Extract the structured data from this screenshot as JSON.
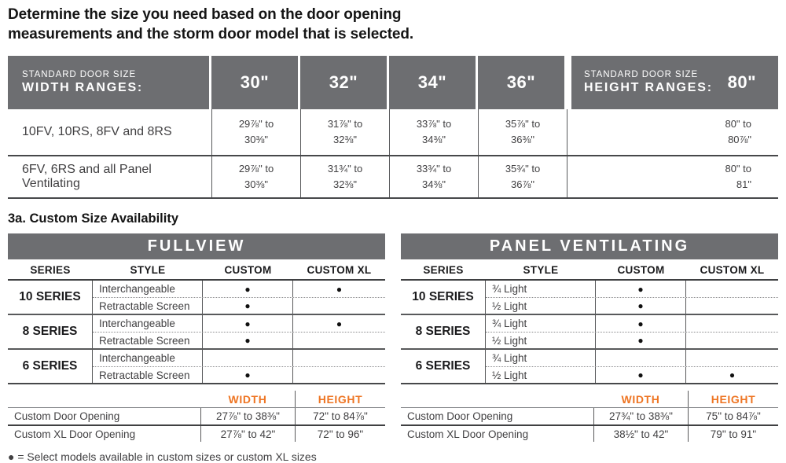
{
  "colors": {
    "header_gray": "#6d6e71",
    "accent_orange": "#ee7523",
    "text_dark": "#414042"
  },
  "title": "Determine the size you need based on the door opening\nmeasurements and the storm door model that is selected.",
  "size_table": {
    "width_header_line1": "STANDARD DOOR SIZE",
    "width_header_line2": "WIDTH RANGES:",
    "width_columns": [
      "30\"",
      "32\"",
      "34\"",
      "36\""
    ],
    "height_header_line1": "STANDARD DOOR SIZE",
    "height_header_line2": "HEIGHT RANGES:",
    "height_column": "80\"",
    "rows": [
      {
        "label": "10FV, 10RS, 8FV and 8RS",
        "widths": [
          "29⅞\" to\n30⅜\"",
          "31⅞\" to\n32⅜\"",
          "33⅞\" to\n34⅜\"",
          "35⅞\" to\n36⅜\""
        ],
        "height": "80\" to\n80⅞\""
      },
      {
        "label": "6FV, 6RS and all Panel Ventilating",
        "widths": [
          "29⅞\" to\n30⅜\"",
          "31¾\" to\n32⅜\"",
          "33¾\" to\n34⅜\"",
          "35¾\" to\n36⅞\""
        ],
        "height": "80\" to\n81\""
      }
    ]
  },
  "section_heading": "3a. Custom Size Availability",
  "availability_tables": [
    {
      "title": "FULLVIEW",
      "columns": [
        "SERIES",
        "STYLE",
        "CUSTOM",
        "CUSTOM XL"
      ],
      "groups": [
        {
          "series": "10 SERIES",
          "rows": [
            {
              "style": "Interchangeable",
              "custom": "●",
              "custom_xl": "●"
            },
            {
              "style": "Retractable Screen",
              "custom": "●",
              "custom_xl": ""
            }
          ]
        },
        {
          "series": "8 SERIES",
          "rows": [
            {
              "style": "Interchangeable",
              "custom": "●",
              "custom_xl": "●"
            },
            {
              "style": "Retractable Screen",
              "custom": "●",
              "custom_xl": ""
            }
          ]
        },
        {
          "series": "6 SERIES",
          "rows": [
            {
              "style": "Interchangeable",
              "custom": "",
              "custom_xl": ""
            },
            {
              "style": "Retractable Screen",
              "custom": "●",
              "custom_xl": ""
            }
          ]
        }
      ],
      "width_label": "WIDTH",
      "height_label": "HEIGHT",
      "openings": [
        {
          "label": "Custom Door Opening",
          "width": "27⅞\" to 38⅜\"",
          "height": "72\" to 84⅞\""
        },
        {
          "label": "Custom XL Door Opening",
          "width": "27⅞\" to 42\"",
          "height": "72\" to 96\""
        }
      ]
    },
    {
      "title": "PANEL VENTILATING",
      "columns": [
        "SERIES",
        "STYLE",
        "CUSTOM",
        "CUSTOM XL"
      ],
      "groups": [
        {
          "series": "10 SERIES",
          "rows": [
            {
              "style": "¾ Light",
              "custom": "●",
              "custom_xl": ""
            },
            {
              "style": "½ Light",
              "custom": "●",
              "custom_xl": ""
            }
          ]
        },
        {
          "series": "8 SERIES",
          "rows": [
            {
              "style": "¾ Light",
              "custom": "●",
              "custom_xl": ""
            },
            {
              "style": "½ Light",
              "custom": "●",
              "custom_xl": ""
            }
          ]
        },
        {
          "series": "6 SERIES",
          "rows": [
            {
              "style": "¾ Light",
              "custom": "",
              "custom_xl": ""
            },
            {
              "style": "½ Light",
              "custom": "●",
              "custom_xl": "●"
            }
          ]
        }
      ],
      "width_label": "WIDTH",
      "height_label": "HEIGHT",
      "openings": [
        {
          "label": "Custom Door Opening",
          "width": "27¾\" to 38⅜\"",
          "height": "75\" to 84⅞\""
        },
        {
          "label": "Custom XL Door Opening",
          "width": "38½\" to 42\"",
          "height": "79\" to 91\""
        }
      ]
    }
  ],
  "footnote": "● = Select models available in custom sizes or custom XL sizes"
}
